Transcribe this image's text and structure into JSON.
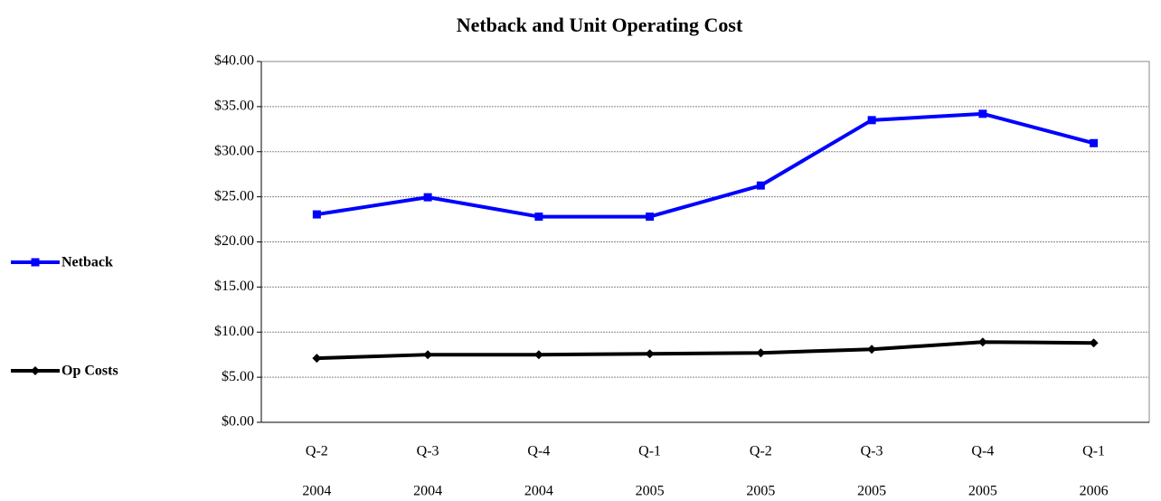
{
  "chart_data": {
    "type": "line",
    "title": "Netback and  Unit Operating Cost",
    "categories": [
      [
        "Q-2",
        "2004"
      ],
      [
        "Q-3",
        "2004"
      ],
      [
        "Q-4",
        "2004"
      ],
      [
        "Q-1",
        "2005"
      ],
      [
        "Q-2",
        "2005"
      ],
      [
        "Q-3",
        "2005"
      ],
      [
        "Q-4",
        "2005"
      ],
      [
        "Q-1",
        "2006"
      ]
    ],
    "series": [
      {
        "name": "Netback",
        "color": "#0000ff",
        "marker": "square",
        "values": [
          23.05,
          24.95,
          22.8,
          22.8,
          26.25,
          33.5,
          34.2,
          30.95
        ]
      },
      {
        "name": "Op Costs",
        "color": "#000000",
        "marker": "diamond",
        "values": [
          7.1,
          7.5,
          7.5,
          7.6,
          7.7,
          8.1,
          8.9,
          8.8
        ]
      }
    ],
    "ylim": [
      0,
      40
    ],
    "yticks": [
      {
        "value": 0,
        "label": "$0.00"
      },
      {
        "value": 5,
        "label": "$5.00"
      },
      {
        "value": 10,
        "label": "$10.00"
      },
      {
        "value": 15,
        "label": "$15.00"
      },
      {
        "value": 20,
        "label": "$20.00"
      },
      {
        "value": 25,
        "label": "$25.00"
      },
      {
        "value": 30,
        "label": "$30.00"
      },
      {
        "value": 35,
        "label": "$35.00"
      },
      {
        "value": 40,
        "label": "$40.00"
      }
    ],
    "grid": true,
    "legend": "left"
  }
}
